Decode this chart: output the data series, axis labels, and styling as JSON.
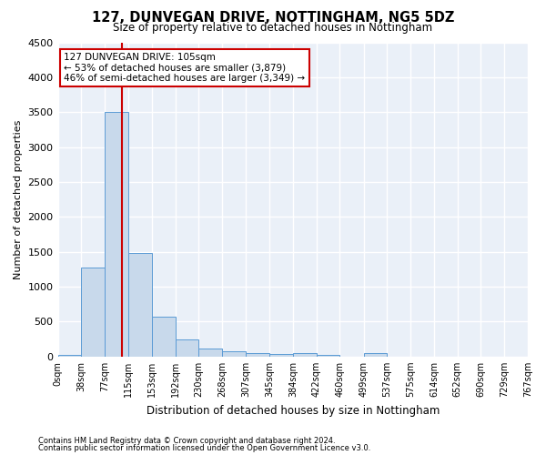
{
  "title": "127, DUNVEGAN DRIVE, NOTTINGHAM, NG5 5DZ",
  "subtitle": "Size of property relative to detached houses in Nottingham",
  "xlabel": "Distribution of detached houses by size in Nottingham",
  "ylabel": "Number of detached properties",
  "bin_labels": [
    "0sqm",
    "38sqm",
    "77sqm",
    "115sqm",
    "153sqm",
    "192sqm",
    "230sqm",
    "268sqm",
    "307sqm",
    "345sqm",
    "384sqm",
    "422sqm",
    "460sqm",
    "499sqm",
    "537sqm",
    "575sqm",
    "614sqm",
    "652sqm",
    "690sqm",
    "729sqm",
    "767sqm"
  ],
  "bin_edges": [
    0,
    38,
    77,
    115,
    153,
    192,
    230,
    268,
    307,
    345,
    384,
    422,
    460,
    499,
    537,
    575,
    614,
    652,
    690,
    729,
    767
  ],
  "bar_values": [
    30,
    1280,
    3500,
    1480,
    570,
    240,
    115,
    80,
    50,
    40,
    50,
    30,
    0,
    50,
    0,
    0,
    0,
    0,
    0,
    0
  ],
  "bar_color": "#c8d9eb",
  "bar_edgecolor": "#5b9bd5",
  "vline_x": 105,
  "vline_color": "#cc0000",
  "annotation_line1": "127 DUNVEGAN DRIVE: 105sqm",
  "annotation_line2": "← 53% of detached houses are smaller (3,879)",
  "annotation_line3": "46% of semi-detached houses are larger (3,349) →",
  "annotation_box_color": "#cc0000",
  "ylim": [
    0,
    4500
  ],
  "yticks": [
    0,
    500,
    1000,
    1500,
    2000,
    2500,
    3000,
    3500,
    4000,
    4500
  ],
  "background_color": "#eaf0f8",
  "grid_color": "#ffffff",
  "footer_line1": "Contains HM Land Registry data © Crown copyright and database right 2024.",
  "footer_line2": "Contains public sector information licensed under the Open Government Licence v3.0."
}
